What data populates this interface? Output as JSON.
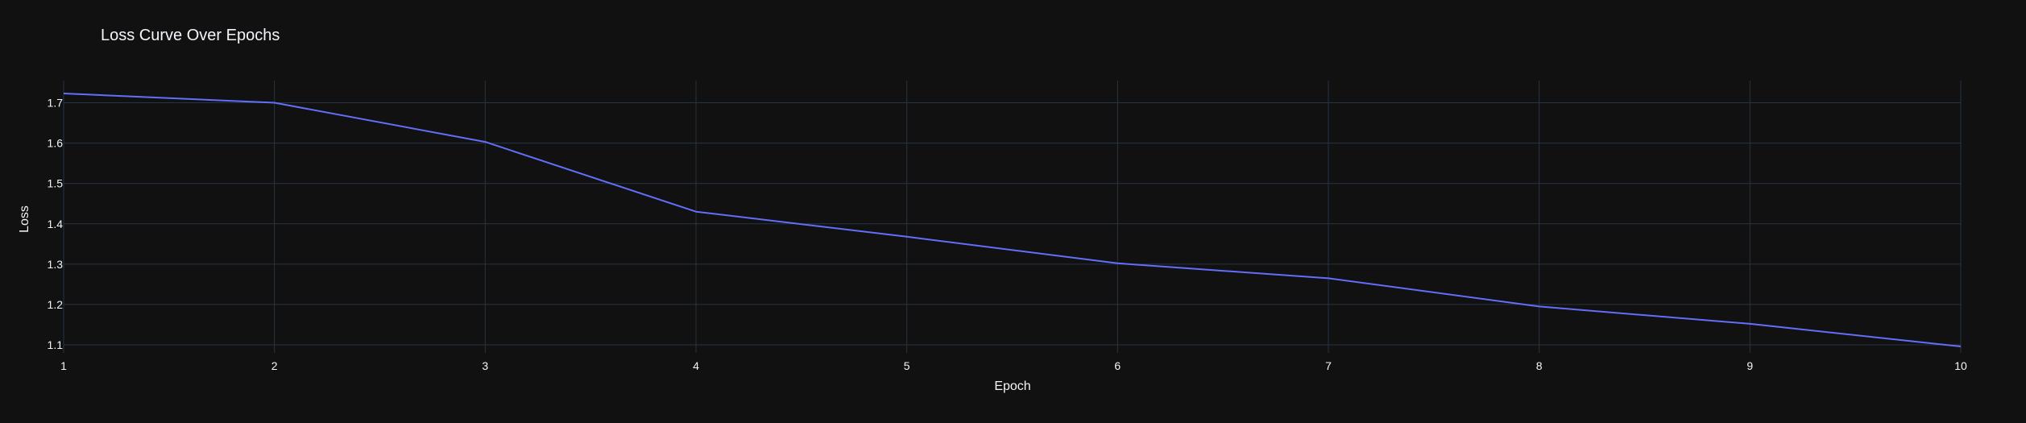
{
  "chart_data": {
    "type": "line",
    "title": "Loss Curve Over Epochs",
    "xlabel": "Epoch",
    "ylabel": "Loss",
    "x": [
      1,
      2,
      3,
      4,
      5,
      6,
      7,
      8,
      9,
      10
    ],
    "series": [
      {
        "values": [
          1.723,
          1.7,
          1.603,
          1.43,
          1.368,
          1.302,
          1.265,
          1.195,
          1.152,
          1.096
        ],
        "color": "#636efa"
      }
    ],
    "xlim": [
      1,
      10
    ],
    "ylim": [
      1.08,
      1.755
    ],
    "x_ticks": [
      1,
      2,
      3,
      4,
      5,
      6,
      7,
      8,
      9,
      10
    ],
    "y_ticks": [
      1.1,
      1.2,
      1.3,
      1.4,
      1.5,
      1.6,
      1.7
    ],
    "grid": true,
    "legend": "none",
    "background_color": "#111111",
    "grid_color": "#283442",
    "text_color": "#f2f5fa"
  }
}
